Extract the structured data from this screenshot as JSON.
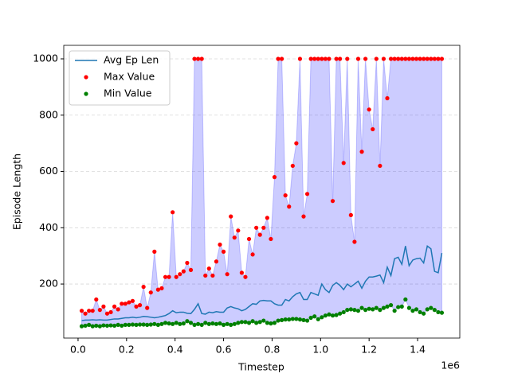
{
  "chart_data": {
    "type": "line",
    "xlabel": "Timestep",
    "ylabel": "Episode Length",
    "x_offset_label": "1e6",
    "x": [
      15000,
      30000,
      45000,
      60000,
      75000,
      90000,
      105000,
      120000,
      135000,
      150000,
      165000,
      180000,
      195000,
      210000,
      225000,
      240000,
      255000,
      270000,
      285000,
      300000,
      315000,
      330000,
      345000,
      360000,
      375000,
      390000,
      405000,
      420000,
      435000,
      450000,
      465000,
      480000,
      495000,
      510000,
      525000,
      540000,
      555000,
      570000,
      585000,
      600000,
      615000,
      630000,
      645000,
      660000,
      675000,
      690000,
      705000,
      720000,
      735000,
      750000,
      765000,
      780000,
      795000,
      810000,
      825000,
      840000,
      855000,
      870000,
      885000,
      900000,
      915000,
      930000,
      945000,
      960000,
      975000,
      990000,
      1005000,
      1020000,
      1035000,
      1050000,
      1065000,
      1080000,
      1095000,
      1110000,
      1125000,
      1140000,
      1155000,
      1170000,
      1185000,
      1200000,
      1215000,
      1230000,
      1245000,
      1260000,
      1275000,
      1290000,
      1305000,
      1320000,
      1335000,
      1350000,
      1365000,
      1380000,
      1395000,
      1410000,
      1425000,
      1440000,
      1455000,
      1470000,
      1485000,
      1500000
    ],
    "series": [
      {
        "name": "Avg Ep Len",
        "style": "line",
        "color": "#1f77b4",
        "values": [
          70,
          72,
          72,
          73,
          72,
          73,
          72,
          72,
          74,
          76,
          76,
          78,
          80,
          80,
          82,
          80,
          82,
          85,
          84,
          82,
          80,
          82,
          85,
          88,
          95,
          105,
          98,
          100,
          100,
          96,
          95,
          110,
          130,
          95,
          93,
          100,
          98,
          102,
          100,
          100,
          115,
          120,
          115,
          112,
          105,
          110,
          120,
          130,
          128,
          140,
          142,
          140,
          140,
          130,
          125,
          125,
          145,
          140,
          155,
          165,
          170,
          145,
          145,
          170,
          165,
          160,
          200,
          180,
          170,
          195,
          205,
          195,
          180,
          200,
          190,
          200,
          210,
          185,
          210,
          225,
          225,
          228,
          232,
          205,
          260,
          230,
          290,
          295,
          270,
          335,
          265,
          285,
          290,
          292,
          275,
          335,
          325,
          245,
          240,
          310
        ]
      },
      {
        "name": "Max Value",
        "style": "scatter",
        "color": "#ff0000",
        "values": [
          105,
          95,
          105,
          105,
          145,
          108,
          120,
          95,
          100,
          120,
          110,
          130,
          130,
          135,
          140,
          120,
          125,
          190,
          115,
          170,
          315,
          180,
          185,
          225,
          225,
          455,
          225,
          235,
          245,
          275,
          250,
          1000,
          1000,
          1000,
          230,
          255,
          230,
          280,
          340,
          315,
          235,
          440,
          365,
          390,
          240,
          225,
          360,
          305,
          400,
          375,
          400,
          435,
          360,
          580,
          1000,
          1000,
          515,
          475,
          620,
          700,
          1000,
          440,
          520,
          1000,
          1000,
          1000,
          1000,
          1000,
          1000,
          495,
          1000,
          1000,
          630,
          1000,
          445,
          350,
          1000,
          670,
          1000,
          820,
          750,
          1000,
          620,
          1000,
          860,
          1000,
          1000,
          1000,
          1000,
          1000,
          1000,
          1000,
          1000,
          1000,
          1000,
          1000,
          1000,
          1000,
          1000,
          1000
        ]
      },
      {
        "name": "Min Value",
        "style": "scatter",
        "color": "#008000",
        "values": [
          50,
          52,
          55,
          50,
          52,
          50,
          53,
          52,
          53,
          52,
          55,
          52,
          55,
          55,
          56,
          55,
          56,
          56,
          55,
          56,
          58,
          55,
          58,
          62,
          60,
          58,
          62,
          58,
          60,
          68,
          62,
          55,
          58,
          55,
          62,
          58,
          60,
          58,
          60,
          55,
          58,
          55,
          58,
          62,
          65,
          65,
          62,
          68,
          62,
          65,
          70,
          62,
          60,
          62,
          70,
          72,
          74,
          74,
          76,
          76,
          74,
          72,
          70,
          80,
          85,
          75,
          82,
          88,
          92,
          88,
          90,
          95,
          100,
          108,
          110,
          108,
          105,
          115,
          108,
          112,
          110,
          115,
          108,
          115,
          120,
          125,
          105,
          118,
          120,
          145,
          115,
          105,
          110,
          100,
          95,
          110,
          115,
          108,
          100,
          98
        ]
      }
    ],
    "fill": {
      "between": [
        1,
        2
      ],
      "color": "#0000ff",
      "opacity": 0.2
    },
    "xlim": [
      -59000,
      1574000
    ],
    "ylim": [
      8,
      1048
    ],
    "xticks": [
      {
        "value": 0,
        "label": "0.0"
      },
      {
        "value": 200000,
        "label": "0.2"
      },
      {
        "value": 400000,
        "label": "0.4"
      },
      {
        "value": 600000,
        "label": "0.6"
      },
      {
        "value": 800000,
        "label": "0.8"
      },
      {
        "value": 1000000,
        "label": "1.0"
      },
      {
        "value": 1200000,
        "label": "1.2"
      },
      {
        "value": 1400000,
        "label": "1.4"
      }
    ],
    "yticks": [
      200,
      400,
      600,
      800,
      1000
    ],
    "ygrid": true,
    "legend": "upper-left"
  }
}
